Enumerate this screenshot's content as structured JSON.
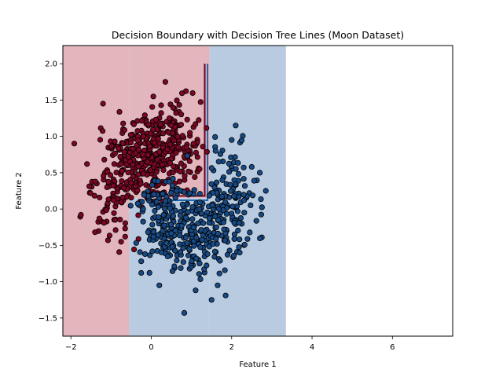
{
  "chart_data": {
    "type": "scatter",
    "title": "Decision Boundary with Decision Tree Lines (Moon Dataset)",
    "xlabel": "Feature 1",
    "ylabel": "Feature 2",
    "xlim": [
      -2.2,
      7.5
    ],
    "ylim": [
      -1.75,
      2.25
    ],
    "xticks": [
      -2,
      0,
      2,
      4,
      6
    ],
    "yticks": [
      -1.5,
      -1.0,
      -0.5,
      0.0,
      0.5,
      1.0,
      1.5,
      2.0
    ],
    "xtick_labels": [
      "−2",
      "0",
      "2",
      "4",
      "6"
    ],
    "ytick_labels": [
      "−1.5",
      "−1.0",
      "−0.5",
      "0.0",
      "0.5",
      "1.0",
      "1.5",
      "2.0"
    ],
    "grid": false,
    "legend": "none",
    "regions": [
      {
        "class": 0,
        "color": "#e3b5bd",
        "x": [
          -2.2,
          -0.55
        ],
        "y": [
          -1.75,
          2.25
        ]
      },
      {
        "class": 0,
        "color": "#e3b5bd",
        "x": [
          -0.55,
          1.45
        ],
        "y": [
          0.15,
          2.25
        ]
      },
      {
        "class": 1,
        "color": "#b8cbe0",
        "x": [
          -0.55,
          1.45
        ],
        "y": [
          -1.75,
          0.15
        ]
      },
      {
        "class": 1,
        "color": "#b8cbe0",
        "x": [
          1.45,
          3.35
        ],
        "y": [
          -1.75,
          2.25
        ]
      }
    ],
    "split_lines": [
      {
        "class": 0,
        "color": "#67001f",
        "points": [
          [
            1.33,
            2.0
          ],
          [
            1.33,
            0.18
          ],
          [
            -0.12,
            0.18
          ]
        ]
      },
      {
        "class": 1,
        "color": "#2166ac",
        "points": [
          [
            1.4,
            2.0
          ],
          [
            1.4,
            0.12
          ],
          [
            -0.12,
            0.12
          ]
        ]
      }
    ],
    "series": [
      {
        "class": 0,
        "color": "#7b0722",
        "edge": "#000000",
        "clusters": [
          {
            "cx": -0.1,
            "cy": 0.75,
            "sx": 0.45,
            "sy": 0.32,
            "n": 200
          },
          {
            "cx": 0.55,
            "cy": 0.85,
            "sx": 0.35,
            "sy": 0.32,
            "n": 150
          },
          {
            "cx": -0.75,
            "cy": 0.45,
            "sx": 0.35,
            "sy": 0.35,
            "n": 90
          },
          {
            "cx": -0.95,
            "cy": 0.05,
            "sx": 0.35,
            "sy": 0.22,
            "n": 40
          }
        ],
        "points": [
          [
            -1.6,
            0.62
          ],
          [
            -1.75,
            -0.08
          ],
          [
            -1.2,
            1.45
          ],
          [
            0.35,
            1.75
          ],
          [
            0.05,
            1.55
          ],
          [
            0.45,
            1.25
          ],
          [
            1.05,
            0.9
          ],
          [
            1.2,
            0.55
          ],
          [
            -0.75,
            -0.45
          ],
          [
            -0.65,
            -0.38
          ],
          [
            0.9,
            -0.05
          ],
          [
            -1.4,
            -0.32
          ]
        ]
      },
      {
        "class": 1,
        "color": "#174a85",
        "edge": "#000000",
        "clusters": [
          {
            "cx": 1.1,
            "cy": -0.35,
            "sx": 0.55,
            "sy": 0.28,
            "n": 230
          },
          {
            "cx": 1.95,
            "cy": 0.15,
            "sx": 0.35,
            "sy": 0.35,
            "n": 110
          },
          {
            "cx": 0.25,
            "cy": -0.2,
            "sx": 0.3,
            "sy": 0.25,
            "n": 60
          },
          {
            "cx": 0.4,
            "cy": 0.22,
            "sx": 0.3,
            "sy": 0.15,
            "n": 40
          }
        ],
        "points": [
          [
            2.1,
            1.15
          ],
          [
            2.85,
            0.25
          ],
          [
            2.7,
            0.5
          ],
          [
            1.5,
            -1.25
          ],
          [
            1.65,
            -1.05
          ],
          [
            -0.25,
            -0.72
          ],
          [
            -0.25,
            -0.88
          ],
          [
            2.5,
            0.58
          ],
          [
            0.2,
            -1.05
          ],
          [
            2.2,
            -0.6
          ],
          [
            2.0,
            0.95
          ],
          [
            1.6,
            0.8
          ]
        ]
      }
    ]
  }
}
